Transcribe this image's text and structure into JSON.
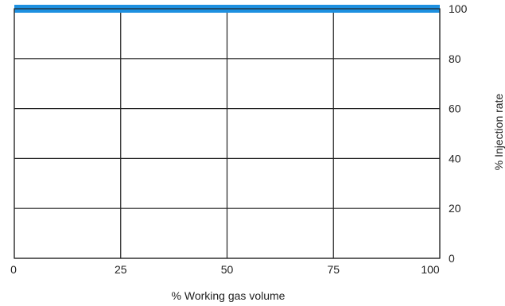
{
  "chart_data": {
    "type": "line",
    "xlabel": "% Working gas volume",
    "ylabel": "% Injection rate",
    "xlim": [
      0,
      100
    ],
    "ylim": [
      0,
      100
    ],
    "x_ticks": [
      "0",
      "25",
      "50",
      "75",
      "100"
    ],
    "y_ticks": [
      "0",
      "20",
      "40",
      "60",
      "80",
      "100"
    ],
    "grid": true,
    "y_axis_side": "right",
    "series": [
      {
        "color": "#1e90e0",
        "x": [
          0,
          100
        ],
        "y": [
          100,
          100
        ]
      }
    ]
  }
}
